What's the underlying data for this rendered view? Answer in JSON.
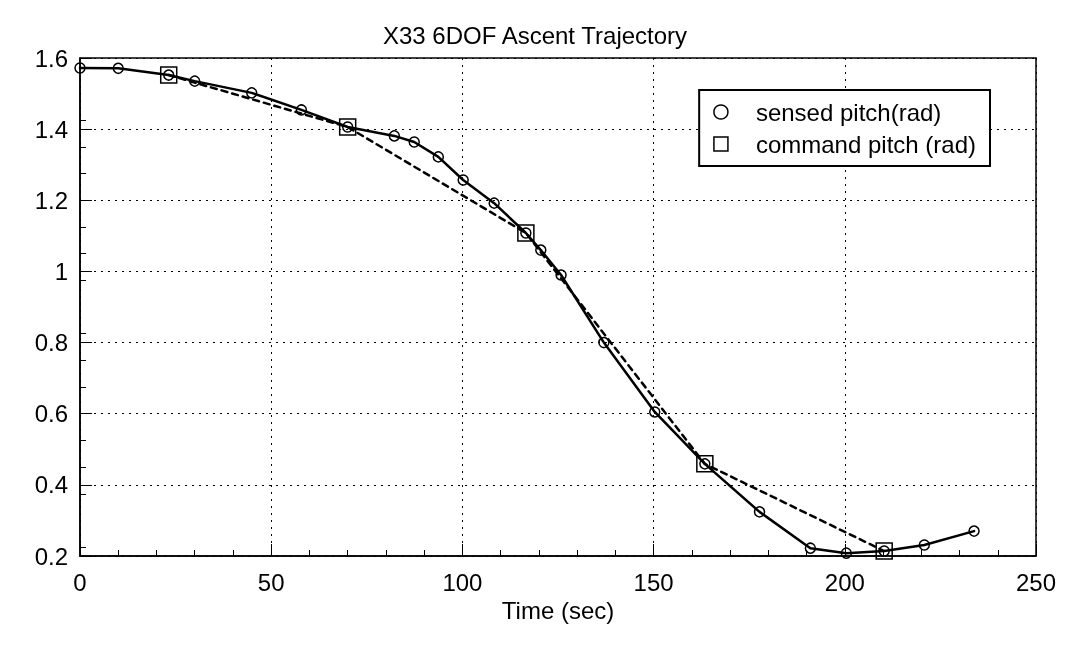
{
  "chart_data": {
    "type": "line",
    "title": "X33 6DOF Ascent Trajectory",
    "xlabel": "Time (sec)",
    "xlim": [
      0,
      250
    ],
    "xticks": [
      0,
      50,
      100,
      150,
      200,
      250
    ],
    "ylim": [
      0.2,
      1.6
    ],
    "yticks": [
      0.2,
      0.4,
      0.6,
      0.8,
      1,
      1.2,
      1.4,
      1.6
    ],
    "grid": true,
    "legend": "top right",
    "series": [
      {
        "name": "sensed pitch(rad)",
        "color": "#000000",
        "line_style": "solid",
        "marker": "circle",
        "x": [
          0,
          10,
          23.2,
          30,
          44.9,
          57.9,
          70,
          82.2,
          87.4,
          93.7,
          100.2,
          108.3,
          116.6,
          120.5,
          125.8,
          137,
          150.3,
          163.4,
          177.7,
          191,
          200.4,
          210.3,
          220.8,
          233.8
        ],
        "values": [
          1.572,
          1.571,
          1.552,
          1.535,
          1.502,
          1.454,
          1.406,
          1.381,
          1.364,
          1.322,
          1.257,
          1.192,
          1.108,
          1.06,
          0.99,
          0.8,
          0.605,
          0.459,
          0.324,
          0.222,
          0.208,
          0.214,
          0.231,
          0.27
        ]
      },
      {
        "name": "command pitch (rad)",
        "color": "#000000",
        "line_style": "dashed",
        "marker": "square",
        "x": [
          23.2,
          70,
          116.6,
          163.4,
          210.3
        ],
        "values": [
          1.552,
          1.406,
          1.108,
          0.459,
          0.214
        ]
      }
    ]
  }
}
